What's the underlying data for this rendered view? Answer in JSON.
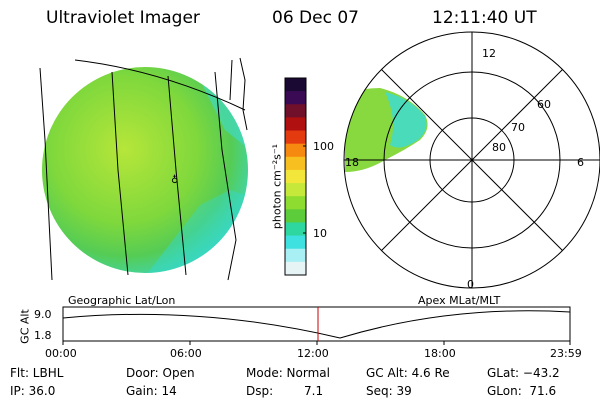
{
  "header": {
    "instrument": "Ultraviolet Imager",
    "date": "06 Dec 07",
    "time": "12:11:40 UT"
  },
  "colorbar": {
    "unit_label": "photon cm⁻²s⁻¹",
    "tick_labels": [
      "100",
      "10"
    ],
    "colors": [
      "#1a0a33",
      "#3a0a55",
      "#70102a",
      "#b01010",
      "#e33a10",
      "#f68a10",
      "#f7c020",
      "#f2e63a",
      "#c6e83a",
      "#8fdc30",
      "#5ccc3a",
      "#2ed6a0",
      "#3fe0e0",
      "#a8f0f4",
      "#e6f4f6"
    ]
  },
  "globe_labels": {
    "left_caption": "Geographic Lat/Lon",
    "right_caption": "Apex MLat/MLT"
  },
  "polar": {
    "ring_labels": [
      "60",
      "70",
      "80"
    ],
    "mlt_labels": [
      "12",
      "18",
      "6",
      "0"
    ]
  },
  "altitude_plot": {
    "ylabel": "GC Alt",
    "y_ticks": [
      "9.0",
      "1.8"
    ],
    "x_ticks": [
      "00:00",
      "06:00",
      "12:00",
      "18:00",
      "23:59"
    ],
    "marker_color": "#cc0000"
  },
  "info": {
    "flt": "Flt: LBHL",
    "ip": "IP: 36.0",
    "door": "Door: Open",
    "gain": "Gain: 14",
    "mode": "Mode: Normal",
    "dsp_label": "Dsp:",
    "dsp_value": "7.1",
    "gcalt": "GC Alt: 4.6 Re",
    "seq": "Seq: 39",
    "glat": "GLat: −43.2",
    "glon": "GLon:  71.6"
  }
}
